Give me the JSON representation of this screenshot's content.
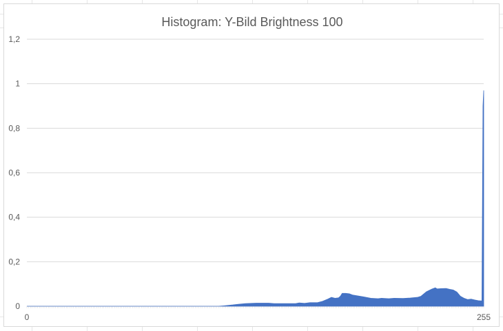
{
  "chart_data": {
    "type": "area",
    "title": "Histogram: Y-Bild Brightness 100",
    "xlabel": "",
    "ylabel": "",
    "xlim": [
      0,
      255
    ],
    "ylim": [
      0,
      1.2
    ],
    "x_tick_labels": [
      "0",
      "255"
    ],
    "y_tick_labels": [
      "0",
      "0,2",
      "0,4",
      "0,6",
      "0,8",
      "1",
      "1,2"
    ],
    "y_ticks": [
      0,
      0.2,
      0.4,
      0.6,
      0.8,
      1.0,
      1.2
    ],
    "grid": true,
    "legend": "none",
    "color": "#4472c4",
    "points": [
      [
        0,
        0
      ],
      [
        107,
        0
      ],
      [
        110,
        0.002
      ],
      [
        115,
        0.006
      ],
      [
        118,
        0.009
      ],
      [
        122,
        0.012
      ],
      [
        128,
        0.014
      ],
      [
        135,
        0.014
      ],
      [
        138,
        0.012
      ],
      [
        145,
        0.012
      ],
      [
        150,
        0.012
      ],
      [
        152,
        0.015
      ],
      [
        155,
        0.013
      ],
      [
        158,
        0.016
      ],
      [
        162,
        0.016
      ],
      [
        165,
        0.022
      ],
      [
        168,
        0.032
      ],
      [
        170,
        0.04
      ],
      [
        172,
        0.036
      ],
      [
        174,
        0.038
      ],
      [
        175,
        0.045
      ],
      [
        176,
        0.058
      ],
      [
        178,
        0.058
      ],
      [
        180,
        0.056
      ],
      [
        182,
        0.05
      ],
      [
        188,
        0.042
      ],
      [
        192,
        0.036
      ],
      [
        196,
        0.034
      ],
      [
        198,
        0.036
      ],
      [
        202,
        0.034
      ],
      [
        205,
        0.036
      ],
      [
        210,
        0.035
      ],
      [
        214,
        0.037
      ],
      [
        218,
        0.04
      ],
      [
        220,
        0.045
      ],
      [
        223,
        0.065
      ],
      [
        226,
        0.077
      ],
      [
        228,
        0.083
      ],
      [
        229,
        0.078
      ],
      [
        231,
        0.079
      ],
      [
        234,
        0.08
      ],
      [
        236,
        0.076
      ],
      [
        238,
        0.073
      ],
      [
        240,
        0.064
      ],
      [
        242,
        0.045
      ],
      [
        244,
        0.036
      ],
      [
        246,
        0.03
      ],
      [
        248,
        0.032
      ],
      [
        250,
        0.028
      ],
      [
        252,
        0.025
      ],
      [
        254,
        0.024
      ],
      [
        254.6,
        0.9
      ],
      [
        255,
        0.97
      ],
      [
        255,
        0
      ]
    ]
  }
}
